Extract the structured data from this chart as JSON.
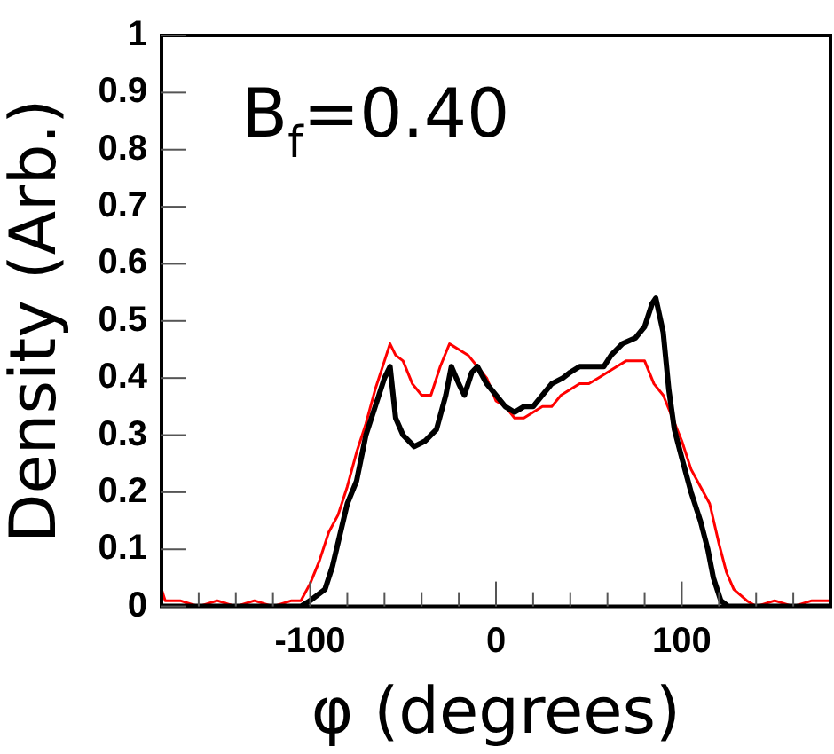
{
  "chart_data": {
    "type": "line",
    "xlabel": "φ (degrees)",
    "ylabel": "Density (Arb.)",
    "annotations": [
      "B$_{f}$=0.40"
    ],
    "xlim": [
      -180,
      180
    ],
    "ylim": [
      0,
      1
    ],
    "xticks": [
      {
        "value": -160,
        "label": null
      },
      {
        "value": -140,
        "label": null
      },
      {
        "value": -120,
        "label": null
      },
      -100,
      {
        "value": -80,
        "label": null
      },
      {
        "value": -60,
        "label": null
      },
      {
        "value": -40,
        "label": null
      },
      {
        "value": -20,
        "label": null
      },
      0,
      {
        "value": 20,
        "label": null
      },
      {
        "value": 40,
        "label": null
      },
      {
        "value": 60,
        "label": null
      },
      {
        "value": 80,
        "label": null
      },
      100,
      {
        "value": 120,
        "label": null
      },
      {
        "value": 140,
        "label": null
      },
      {
        "value": 160,
        "label": null
      }
    ],
    "yticks": [
      0,
      0.1,
      0.2,
      0.3,
      0.4,
      0.5,
      0.6,
      0.7,
      0.8,
      0.9,
      1
    ],
    "marker": "none",
    "line_style": "solid",
    "legend": false,
    "series": [
      {
        "color": "#000000",
        "x": [
          -180,
          -105,
          -100,
          -92,
          -88,
          -80,
          -75,
          -70,
          -65,
          -60,
          -57,
          -54,
          -50,
          -44,
          -38,
          -32,
          -27,
          -24,
          -20,
          -17,
          -13,
          -10,
          -5,
          0,
          5,
          10,
          15,
          20,
          25,
          30,
          36,
          40,
          45,
          52,
          58,
          62,
          68,
          75,
          80,
          84,
          86,
          90,
          93,
          96,
          100,
          105,
          110,
          114,
          117,
          121,
          125,
          180
        ],
        "values": [
          0,
          0,
          0.01,
          0.03,
          0.07,
          0.18,
          0.22,
          0.3,
          0.35,
          0.4,
          0.42,
          0.33,
          0.3,
          0.28,
          0.29,
          0.31,
          0.37,
          0.42,
          0.39,
          0.37,
          0.41,
          0.42,
          0.39,
          0.37,
          0.35,
          0.34,
          0.35,
          0.35,
          0.37,
          0.39,
          0.4,
          0.41,
          0.42,
          0.42,
          0.42,
          0.44,
          0.46,
          0.47,
          0.49,
          0.53,
          0.54,
          0.48,
          0.38,
          0.31,
          0.26,
          0.2,
          0.15,
          0.1,
          0.05,
          0.01,
          0,
          0
        ]
      },
      {
        "color": "#ff0000",
        "x": [
          -180,
          -178,
          -170,
          -160,
          -150,
          -140,
          -130,
          -120,
          -110,
          -105,
          -100,
          -95,
          -90,
          -85,
          -80,
          -75,
          -70,
          -65,
          -60,
          -57,
          -54,
          -50,
          -45,
          -40,
          -35,
          -30,
          -25,
          -20,
          -15,
          -10,
          -5,
          0,
          5,
          10,
          15,
          20,
          25,
          30,
          35,
          40,
          45,
          50,
          55,
          60,
          65,
          70,
          75,
          80,
          85,
          90,
          95,
          100,
          105,
          110,
          115,
          120,
          124,
          128,
          135,
          140,
          150,
          160,
          170,
          180
        ],
        "values": [
          0.03,
          0.01,
          0.01,
          0,
          0.01,
          0,
          0.01,
          0,
          0.01,
          0.01,
          0.04,
          0.08,
          0.13,
          0.16,
          0.21,
          0.27,
          0.32,
          0.38,
          0.43,
          0.46,
          0.44,
          0.43,
          0.39,
          0.37,
          0.37,
          0.42,
          0.46,
          0.45,
          0.44,
          0.42,
          0.4,
          0.36,
          0.35,
          0.33,
          0.33,
          0.34,
          0.35,
          0.35,
          0.37,
          0.38,
          0.39,
          0.39,
          0.4,
          0.41,
          0.42,
          0.43,
          0.43,
          0.43,
          0.39,
          0.37,
          0.33,
          0.29,
          0.24,
          0.21,
          0.18,
          0.11,
          0.06,
          0.03,
          0.01,
          0,
          0.01,
          0,
          0.01,
          0.01
        ]
      }
    ]
  }
}
